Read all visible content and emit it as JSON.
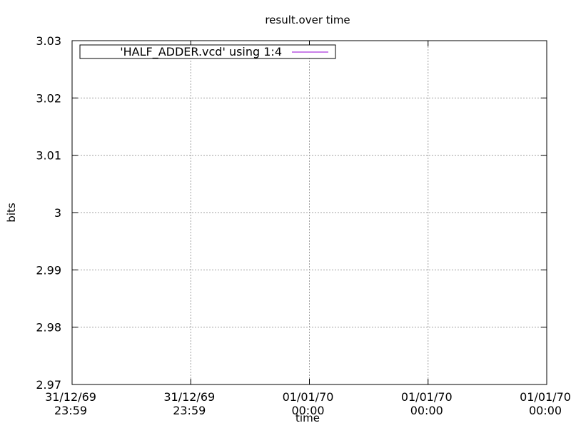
{
  "chart_data": {
    "type": "line",
    "title": "result.over time",
    "xlabel": "time",
    "ylabel": "bits",
    "ylim": [
      2.97,
      3.03
    ],
    "y_ticks": [
      2.97,
      2.98,
      2.99,
      3.0,
      3.01,
      3.02,
      3.03
    ],
    "y_tick_labels": [
      "2.97",
      "2.98",
      "2.99",
      "3",
      "3.01",
      "3.02",
      "3.03"
    ],
    "x_tick_labels": [
      [
        "31/12/69",
        "23:59"
      ],
      [
        "31/12/69",
        "23:59"
      ],
      [
        "01/01/70",
        "00:00"
      ],
      [
        "01/01/70",
        "00:00"
      ],
      [
        "01/01/70",
        "00:00"
      ]
    ],
    "grid": true,
    "legend_position": "top-left",
    "series": [
      {
        "name": "'HALF_ADDER.vcd' using 1:4",
        "color": "#9400d3",
        "values": []
      }
    ]
  }
}
